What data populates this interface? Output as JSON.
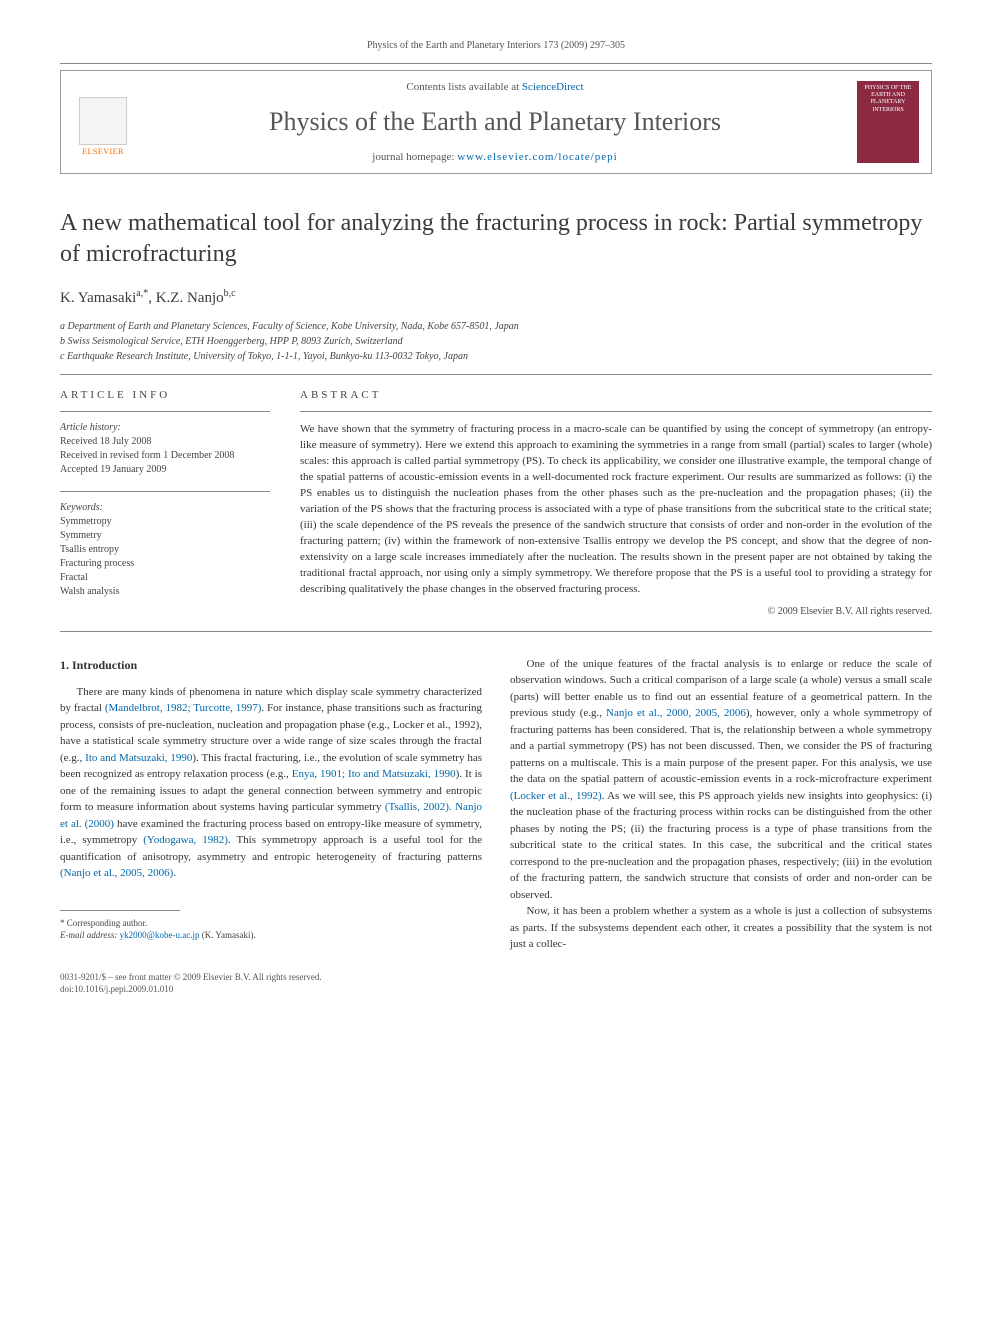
{
  "header_ref": "Physics of the Earth and Planetary Interiors 173 (2009) 297–305",
  "journal_bar": {
    "contents_prefix": "Contents lists available at ",
    "contents_link": "ScienceDirect",
    "journal_title": "Physics of the Earth and Planetary Interiors",
    "homepage_prefix": "journal homepage: ",
    "homepage_link": "www.elsevier.com/locate/pepi",
    "elsevier_label": "ELSEVIER",
    "cover_text": "PHYSICS OF THE EARTH AND PLANETARY INTERIORS"
  },
  "article": {
    "title": "A new mathematical tool for analyzing the fracturing process in rock: Partial symmetropy of microfracturing",
    "authors_html": "K. Yamasaki",
    "author1": "K. Yamasaki",
    "author1_sup": "a,*",
    "author2": "K.Z. Nanjo",
    "author2_sup": "b,c",
    "aff_a": "a Department of Earth and Planetary Sciences, Faculty of Science, Kobe University, Nada, Kobe 657-8501, Japan",
    "aff_b": "b Swiss Seismological Service, ETH Hoenggerberg, HPP P, 8093 Zurich, Switzerland",
    "aff_c": "c Earthquake Research Institute, University of Tokyo, 1-1-1, Yayoi, Bunkyo-ku 113-0032 Tokyo, Japan"
  },
  "info": {
    "section_label": "ARTICLE INFO",
    "history_head": "Article history:",
    "history_1": "Received 18 July 2008",
    "history_2": "Received in revised form 1 December 2008",
    "history_3": "Accepted 19 January 2009",
    "keywords_head": "Keywords:",
    "kw": [
      "Symmetropy",
      "Symmetry",
      "Tsallis entropy",
      "Fracturing process",
      "Fractal",
      "Walsh analysis"
    ]
  },
  "abstract": {
    "section_label": "ABSTRACT",
    "text": "We have shown that the symmetry of fracturing process in a macro-scale can be quantified by using the concept of symmetropy (an entropy-like measure of symmetry). Here we extend this approach to examining the symmetries in a range from small (partial) scales to larger (whole) scales: this approach is called partial symmetropy (PS). To check its applicability, we consider one illustrative example, the temporal change of the spatial patterns of acoustic-emission events in a well-documented rock fracture experiment. Our results are summarized as follows: (i) the PS enables us to distinguish the nucleation phases from the other phases such as the pre-nucleation and the propagation phases; (ii) the variation of the PS shows that the fracturing process is associated with a type of phase transitions from the subcritical state to the critical state; (iii) the scale dependence of the PS reveals the presence of the sandwich structure that consists of order and non-order in the evolution of the fracturing pattern; (iv) within the framework of non-extensive Tsallis entropy we develop the PS concept, and show that the degree of non-extensivity on a large scale increases immediately after the nucleation. The results shown in the present paper are not obtained by taking the traditional fractal approach, nor using only a simply symmetropy. We therefore propose that the PS is a useful tool to providing a strategy for describing qualitatively the phase changes in the observed fracturing process.",
    "copyright": "© 2009 Elsevier B.V. All rights reserved."
  },
  "body": {
    "heading": "1.  Introduction",
    "col1_p1_a": "There are many kinds of phenomena in nature which display scale symmetry characterized by fractal ",
    "col1_p1_ref1": "(Mandelbrot, 1982; Turcotte, 1997)",
    "col1_p1_b": ". For instance, phase transitions such as fracturing process, consists of pre-nucleation, nucleation and propagation phase (e.g., Locker et al., 1992), have a statistical scale symmetry structure over a wide range of size scales through the fractal (e.g., ",
    "col1_p1_ref2": "Ito and Matsuzaki, 1990",
    "col1_p1_c": "). This fractal fracturing, i.e., the evolution of scale symmetry has been recognized as entropy relaxation process (e.g., ",
    "col1_p1_ref3": "Enya, 1901; Ito and Matsuzaki, 1990",
    "col1_p1_d": "). It is one of the remaining issues to adapt the general connection between symmetry and entropic form to measure information about systems having particular symmetry ",
    "col1_p1_ref4": "(Tsallis, 2002). Nanjo et al. (2000)",
    "col1_p1_e": " have examined the fracturing process based on entropy-like measure of symmetry, i.e., symmetropy ",
    "col1_p1_ref5": "(Yodogawa, 1982)",
    "col1_p1_f": ". This symmetropy approach is a useful tool for the quantification of anisotropy, asymmetry and entropic heterogeneity of fracturing patterns ",
    "col1_p1_ref6": "(Nanjo et al., 2005, 2006)",
    "col1_p1_g": ".",
    "col2_p1_a": "One of the unique features of the fractal analysis is to enlarge or reduce the scale of observation windows. Such a critical comparison of a large scale (a whole) versus a small scale (parts) will better enable us to find out an essential feature of a geometrical pattern. In the previous study (e.g., ",
    "col2_p1_ref1": "Nanjo et al., 2000, 2005, 2006",
    "col2_p1_b": "), however, only a whole symmetropy of fracturing patterns has been considered. That is, the relationship between a whole symmetropy and a partial symmetropy (PS) has not been discussed. Then, we consider the PS of fracturing patterns on a multiscale. This is a main purpose of the present paper. For this analysis, we use the data on the spatial pattern of acoustic-emission events in a rock-microfracture experiment ",
    "col2_p1_ref2": "(Locker et al., 1992)",
    "col2_p1_c": ". As we will see, this PS approach yields new insights into geophysics: (i) the nucleation phase of the fracturing process within rocks can be distinguished from the other phases by noting the PS; (ii) the fracturing process is a type of phase transitions from the subcritical state to the critical states. In this case, the subcritical and the critical states correspond to the pre-nucleation and the propagation phases, respectively; (iii) in the evolution of the fracturing pattern, the sandwich structure that consists of order and non-order can be observed.",
    "col2_p2": "Now, it has been a problem whether a system as a whole is just a collection of subsystems as parts. If the subsystems dependent each other, it creates a possibility that the system is not just a collec-"
  },
  "footnote": {
    "corr": "* Corresponding author.",
    "email_label": "E-mail address: ",
    "email": "yk2000@kobe-u.ac.jp",
    "email_suffix": " (K. Yamasaki)."
  },
  "bottom": {
    "line1": "0031-9201/$ – see front matter © 2009 Elsevier B.V. All rights reserved.",
    "line2": "doi:10.1016/j.pepi.2009.01.010"
  }
}
